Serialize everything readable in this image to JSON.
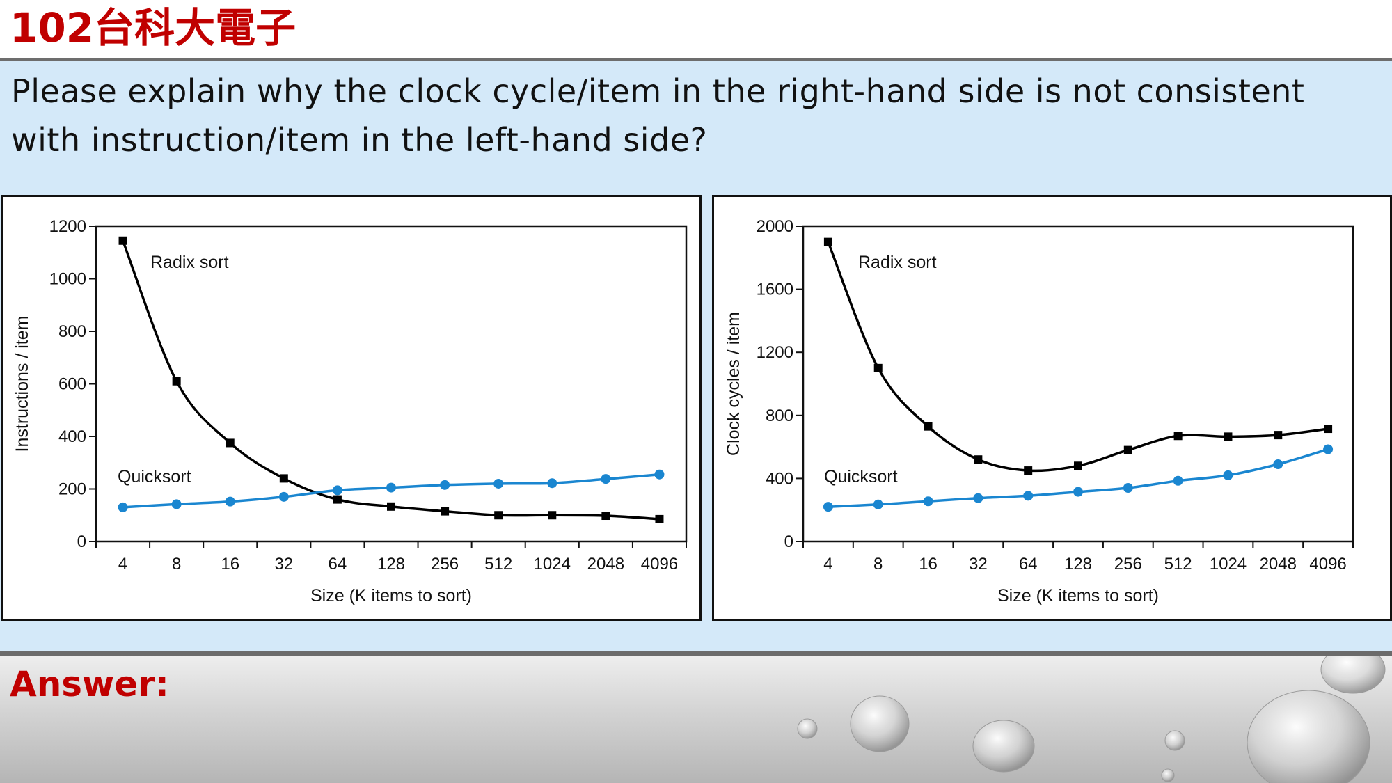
{
  "header": {
    "title": "102台科大電子"
  },
  "question": {
    "text": "Please explain why the clock cycle/item in the right-hand side is not consistent with instruction/item in the left-hand side?"
  },
  "answer": {
    "label": "Answer:"
  },
  "colors": {
    "title_red": "#c00000",
    "radix": "#000000",
    "quicksort": "#1a86d0",
    "band": "#d4e9f9"
  },
  "chart_data": [
    {
      "type": "line",
      "title": "",
      "xlabel": "Size (K items to sort)",
      "ylabel": "Instructions / item",
      "ylim": [
        0,
        1200
      ],
      "yticks": [
        0,
        200,
        400,
        600,
        800,
        1000,
        1200
      ],
      "categories": [
        "4",
        "8",
        "16",
        "32",
        "64",
        "128",
        "256",
        "512",
        "1024",
        "2048",
        "4096"
      ],
      "grid": false,
      "series": [
        {
          "name": "Radix sort",
          "marker": "square",
          "values": [
            1145,
            610,
            375,
            240,
            160,
            133,
            115,
            100,
            100,
            98,
            85
          ]
        },
        {
          "name": "Quicksort",
          "marker": "circle",
          "values": [
            130,
            142,
            152,
            170,
            195,
            205,
            215,
            220,
            222,
            238,
            255
          ]
        }
      ]
    },
    {
      "type": "line",
      "title": "",
      "xlabel": "Size (K items to sort)",
      "ylabel": "Clock cycles / item",
      "ylim": [
        0,
        2000
      ],
      "yticks": [
        0,
        400,
        800,
        1200,
        1600,
        2000
      ],
      "categories": [
        "4",
        "8",
        "16",
        "32",
        "64",
        "128",
        "256",
        "512",
        "1024",
        "2048",
        "4096"
      ],
      "grid": false,
      "series": [
        {
          "name": "Radix sort",
          "marker": "square",
          "values": [
            1900,
            1100,
            730,
            520,
            450,
            480,
            580,
            670,
            665,
            675,
            715
          ]
        },
        {
          "name": "Quicksort",
          "marker": "circle",
          "values": [
            220,
            235,
            255,
            275,
            290,
            315,
            340,
            385,
            420,
            490,
            585
          ]
        }
      ]
    }
  ]
}
